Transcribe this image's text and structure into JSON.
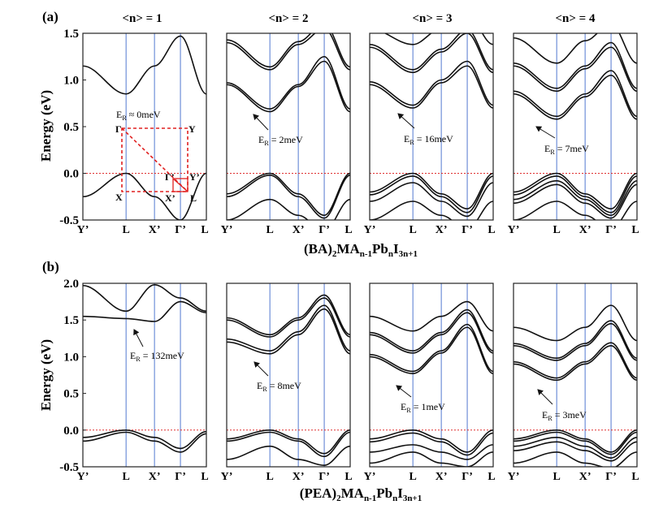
{
  "figure": {
    "panel_a_label": "(a)",
    "panel_b_label": "(b)",
    "y_label": "Energy (eV)",
    "columns": [
      "<n> = 1",
      "<n> = 2",
      "<n> = 3",
      "<n> = 4"
    ],
    "k_labels": [
      "Y’",
      "L",
      "X’",
      "Γ’",
      "L"
    ],
    "k_positions": [
      0,
      0.35,
      0.58,
      0.79,
      1.0
    ],
    "fermi_level": 0.0,
    "formula_a": {
      "pre": "(BA)",
      "s1": "2",
      "mid": "MA",
      "s2": "n-1",
      "pb": "Pb",
      "s3": "n",
      "i": "I",
      "s4": "3n+1"
    },
    "formula_b": {
      "pre": "(PEA)",
      "s1": "2",
      "mid": "MA",
      "s2": "n-1",
      "pb": "Pb",
      "s3": "n",
      "i": "I",
      "s4": "3n+1"
    }
  },
  "inset_bz": {
    "er_prefix": "E",
    "er_sub": "R",
    "er_value": " ≈ 0meV",
    "labels": {
      "gamma_tl": "Γ",
      "y_tr": "Y",
      "x_bl": "X",
      "x_prime": "X’",
      "gamma_prime": "Γ’",
      "y_prime": "Y’",
      "l": "L"
    }
  },
  "colors": {
    "band": "#111111",
    "kline": "#6f8fd8",
    "fermi": "#e03030",
    "bz": "#e02020"
  },
  "chart_data": [
    {
      "type": "line",
      "panel": "(a)",
      "title": "<n> = 1",
      "ylim": [
        -0.5,
        1.5
      ],
      "yticks": [
        "-0.5",
        "0.0",
        "0.5",
        "1.0",
        "1.5"
      ],
      "xlabel": "",
      "ylabel": "Energy (eV)",
      "x": [
        0,
        0.35,
        0.58,
        0.79,
        1.0
      ],
      "series": [
        {
          "name": "cb1",
          "values": [
            1.15,
            0.85,
            1.15,
            1.47,
            0.85
          ]
        },
        {
          "name": "vb1",
          "values": [
            -0.25,
            0.0,
            -0.25,
            -0.5,
            0.0
          ]
        }
      ],
      "annotation": {
        "prefix": "E",
        "sub": "R",
        "value": " ≈ 0meV"
      }
    },
    {
      "type": "line",
      "panel": "(a)",
      "title": "<n> = 2",
      "ylim": [
        -0.5,
        1.5
      ],
      "x": [
        0,
        0.35,
        0.58,
        0.79,
        1.0
      ],
      "series": [
        {
          "name": "cb1",
          "values": [
            0.95,
            0.66,
            0.93,
            1.2,
            0.66
          ]
        },
        {
          "name": "cb2",
          "values": [
            0.97,
            0.69,
            0.95,
            1.25,
            0.69
          ]
        },
        {
          "name": "cb3",
          "values": [
            1.4,
            1.11,
            1.38,
            1.55,
            1.11
          ]
        },
        {
          "name": "cb4",
          "values": [
            1.43,
            1.14,
            1.41,
            1.6,
            1.14
          ]
        },
        {
          "name": "vb1",
          "values": [
            -0.22,
            0.0,
            -0.22,
            -0.45,
            0.0
          ]
        },
        {
          "name": "vb2",
          "values": [
            -0.25,
            -0.02,
            -0.25,
            -0.48,
            -0.02
          ]
        },
        {
          "name": "vb3",
          "values": [
            -0.5,
            -0.28,
            -0.45,
            -0.62,
            -0.28
          ]
        }
      ],
      "annotation": {
        "prefix": "E",
        "sub": "R",
        "value": " = 2meV"
      }
    },
    {
      "type": "line",
      "panel": "(a)",
      "title": "<n> = 3",
      "ylim": [
        -0.5,
        1.5
      ],
      "x": [
        0,
        0.35,
        0.58,
        0.79,
        1.0
      ],
      "series": [
        {
          "name": "cb1",
          "values": [
            0.95,
            0.7,
            0.97,
            1.15,
            0.7
          ]
        },
        {
          "name": "cb2",
          "values": [
            0.98,
            0.73,
            1.0,
            1.2,
            0.73
          ]
        },
        {
          "name": "cb3",
          "values": [
            1.35,
            1.08,
            1.3,
            1.5,
            1.08
          ]
        },
        {
          "name": "cb4",
          "values": [
            1.38,
            1.11,
            1.33,
            1.54,
            1.11
          ]
        },
        {
          "name": "cb5",
          "values": [
            1.55,
            1.38,
            1.55,
            1.7,
            1.38
          ]
        },
        {
          "name": "vb1",
          "values": [
            -0.2,
            0.0,
            -0.22,
            -0.38,
            0.0
          ]
        },
        {
          "name": "vb2",
          "values": [
            -0.23,
            -0.03,
            -0.25,
            -0.42,
            -0.03
          ]
        },
        {
          "name": "vb3",
          "values": [
            -0.3,
            -0.1,
            -0.3,
            -0.46,
            -0.1
          ]
        },
        {
          "name": "vb4",
          "values": [
            -0.5,
            -0.3,
            -0.45,
            -0.6,
            -0.3
          ]
        }
      ],
      "annotation": {
        "prefix": "E",
        "sub": "R",
        "value": " = 16meV"
      }
    },
    {
      "type": "line",
      "panel": "(a)",
      "title": "<n> = 4",
      "ylim": [
        -0.5,
        1.5
      ],
      "x": [
        0,
        0.35,
        0.58,
        0.79,
        1.0
      ],
      "series": [
        {
          "name": "cb1",
          "values": [
            0.85,
            0.58,
            0.82,
            1.05,
            0.58
          ]
        },
        {
          "name": "cb2",
          "values": [
            0.88,
            0.61,
            0.85,
            1.1,
            0.61
          ]
        },
        {
          "name": "cb3",
          "values": [
            1.15,
            0.88,
            1.12,
            1.35,
            0.88
          ]
        },
        {
          "name": "cb4",
          "values": [
            1.18,
            0.91,
            1.15,
            1.4,
            0.91
          ]
        },
        {
          "name": "cb5",
          "values": [
            1.45,
            1.18,
            1.42,
            1.6,
            1.18
          ]
        },
        {
          "name": "vb1",
          "values": [
            -0.2,
            0.0,
            -0.22,
            -0.38,
            0.0
          ]
        },
        {
          "name": "vb2",
          "values": [
            -0.23,
            -0.03,
            -0.25,
            -0.42,
            -0.03
          ]
        },
        {
          "name": "vb3",
          "values": [
            -0.28,
            -0.08,
            -0.28,
            -0.45,
            -0.08
          ]
        },
        {
          "name": "vb4",
          "values": [
            -0.32,
            -0.12,
            -0.32,
            -0.48,
            -0.12
          ]
        },
        {
          "name": "vb5",
          "values": [
            -0.5,
            -0.3,
            -0.45,
            -0.6,
            -0.3
          ]
        }
      ],
      "annotation": {
        "prefix": "E",
        "sub": "R",
        "value": " = 7meV"
      }
    },
    {
      "type": "line",
      "panel": "(b)",
      "title": "",
      "ylim": [
        -0.5,
        2.0
      ],
      "yticks": [
        "-0.5",
        "0.0",
        "0.5",
        "1.0",
        "1.5",
        "2.0"
      ],
      "xlabel": "",
      "ylabel": "Energy (eV)",
      "x": [
        0,
        0.35,
        0.58,
        0.79,
        1.0
      ],
      "series": [
        {
          "name": "cb1",
          "values": [
            1.97,
            1.62,
            1.98,
            1.8,
            1.62
          ]
        },
        {
          "name": "cb2",
          "values": [
            1.55,
            1.52,
            1.48,
            1.75,
            1.6
          ]
        },
        {
          "name": "vb1",
          "values": [
            -0.1,
            0.0,
            -0.1,
            -0.25,
            -0.02
          ]
        },
        {
          "name": "vb2",
          "values": [
            -0.15,
            -0.03,
            -0.15,
            -0.3,
            -0.05
          ]
        }
      ],
      "annotation": {
        "prefix": "E",
        "sub": "R",
        "value": " = 132meV"
      }
    },
    {
      "type": "line",
      "panel": "(b)",
      "title": "",
      "ylim": [
        -0.5,
        2.0
      ],
      "x": [
        0,
        0.35,
        0.58,
        0.79,
        1.0
      ],
      "series": [
        {
          "name": "cb1",
          "values": [
            1.2,
            1.04,
            1.3,
            1.65,
            1.04
          ]
        },
        {
          "name": "cb2",
          "values": [
            1.24,
            1.08,
            1.34,
            1.7,
            1.08
          ]
        },
        {
          "name": "cb3",
          "values": [
            1.5,
            1.27,
            1.5,
            1.8,
            1.27
          ]
        },
        {
          "name": "cb4",
          "values": [
            1.53,
            1.3,
            1.53,
            1.84,
            1.3
          ]
        },
        {
          "name": "vb1",
          "values": [
            -0.12,
            0.0,
            -0.12,
            -0.32,
            0.0
          ]
        },
        {
          "name": "vb2",
          "values": [
            -0.15,
            -0.03,
            -0.15,
            -0.36,
            -0.03
          ]
        },
        {
          "name": "vb3",
          "values": [
            -0.4,
            -0.22,
            -0.4,
            -0.48,
            -0.22
          ]
        }
      ],
      "annotation": {
        "prefix": "E",
        "sub": "R",
        "value": " = 8meV"
      }
    },
    {
      "type": "line",
      "panel": "(b)",
      "title": "",
      "ylim": [
        -0.5,
        2.0
      ],
      "x": [
        0,
        0.35,
        0.58,
        0.79,
        1.0
      ],
      "series": [
        {
          "name": "cb1",
          "values": [
            1.0,
            0.77,
            1.05,
            1.4,
            0.77
          ]
        },
        {
          "name": "cb2",
          "values": [
            1.03,
            0.8,
            1.08,
            1.44,
            0.8
          ]
        },
        {
          "name": "cb3",
          "values": [
            1.3,
            1.05,
            1.3,
            1.6,
            1.05
          ]
        },
        {
          "name": "cb4",
          "values": [
            1.33,
            1.08,
            1.33,
            1.64,
            1.08
          ]
        },
        {
          "name": "cb5",
          "values": [
            1.55,
            1.35,
            1.55,
            1.75,
            1.35
          ]
        },
        {
          "name": "vb1",
          "values": [
            -0.12,
            0.0,
            -0.12,
            -0.3,
            0.0
          ]
        },
        {
          "name": "vb2",
          "values": [
            -0.16,
            -0.04,
            -0.16,
            -0.34,
            -0.04
          ]
        },
        {
          "name": "vb3",
          "values": [
            -0.3,
            -0.2,
            -0.3,
            -0.4,
            -0.2
          ]
        },
        {
          "name": "vb4",
          "values": [
            -0.45,
            -0.3,
            -0.45,
            -0.5,
            -0.3
          ]
        }
      ],
      "annotation": {
        "prefix": "E",
        "sub": "R",
        "value": " = 1meV"
      }
    },
    {
      "type": "line",
      "panel": "(b)",
      "title": "",
      "ylim": [
        -0.5,
        2.0
      ],
      "x": [
        0,
        0.35,
        0.58,
        0.79,
        1.0
      ],
      "series": [
        {
          "name": "cb1",
          "values": [
            0.9,
            0.68,
            0.9,
            1.15,
            0.68
          ]
        },
        {
          "name": "cb2",
          "values": [
            0.93,
            0.71,
            0.93,
            1.19,
            0.71
          ]
        },
        {
          "name": "cb3",
          "values": [
            1.15,
            0.95,
            1.15,
            1.45,
            0.95
          ]
        },
        {
          "name": "cb4",
          "values": [
            1.18,
            0.98,
            1.18,
            1.49,
            0.98
          ]
        },
        {
          "name": "cb5",
          "values": [
            1.4,
            1.22,
            1.4,
            1.7,
            1.22
          ]
        },
        {
          "name": "vb1",
          "values": [
            -0.12,
            0.0,
            -0.12,
            -0.3,
            0.0
          ]
        },
        {
          "name": "vb2",
          "values": [
            -0.15,
            -0.03,
            -0.15,
            -0.33,
            -0.03
          ]
        },
        {
          "name": "vb3",
          "values": [
            -0.22,
            -0.1,
            -0.22,
            -0.38,
            -0.1
          ]
        },
        {
          "name": "vb4",
          "values": [
            -0.28,
            -0.16,
            -0.28,
            -0.42,
            -0.16
          ]
        },
        {
          "name": "vb5",
          "values": [
            -0.45,
            -0.3,
            -0.45,
            -0.52,
            -0.3
          ]
        }
      ],
      "annotation": {
        "prefix": "E",
        "sub": "R",
        "value": " = 3meV"
      }
    }
  ]
}
